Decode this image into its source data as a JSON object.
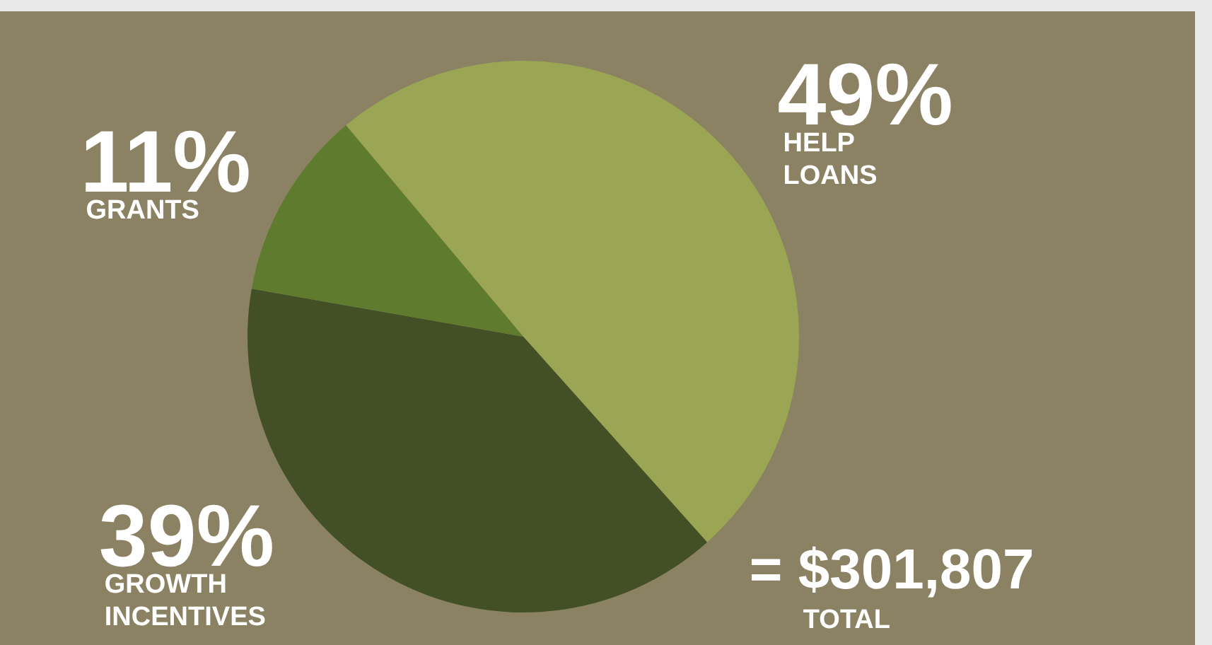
{
  "chart_data": {
    "type": "pie",
    "categories": [
      "HELP LOANS",
      "GROWTH INCENTIVES",
      "GRANTS"
    ],
    "values": [
      49,
      39,
      11
    ],
    "colors": [
      "#9aa654",
      "#435026",
      "#5f7c2e"
    ],
    "value_labels": [
      "49%",
      "39%",
      "11%"
    ],
    "annotations": [
      "= $301,807",
      "TOTAL"
    ],
    "legend": false
  }
}
